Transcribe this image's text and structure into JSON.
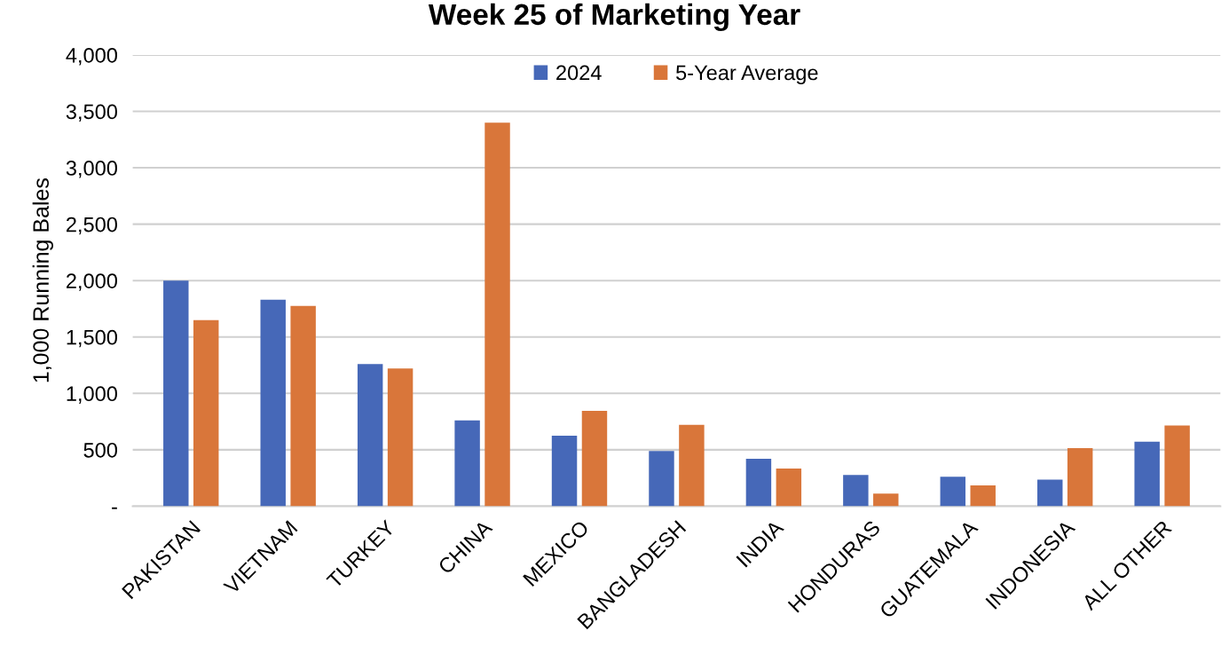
{
  "chart_data": {
    "type": "bar",
    "title": "Week 25 of Marketing Year",
    "ylabel": "1,000 Running Bales",
    "categories": [
      "PAKISTAN",
      "VIETNAM",
      "TURKEY",
      "CHINA",
      "MEXICO",
      "BANGLADESH",
      "INDIA",
      "HONDURAS",
      "GUATEMALA",
      "INDONESIA",
      "ALL OTHER"
    ],
    "series": [
      {
        "name": "2024",
        "color": "#4668b8",
        "values": [
          2000,
          1830,
          1260,
          760,
          625,
          490,
          420,
          276,
          262,
          235,
          572
        ]
      },
      {
        "name": "5-Year Average",
        "color": "#d9763a",
        "values": [
          1650,
          1775,
          1220,
          3400,
          845,
          722,
          334,
          112,
          184,
          514,
          715
        ]
      }
    ],
    "ylim": [
      0,
      4000
    ],
    "yticks": [
      {
        "value": 0,
        "label": "-"
      },
      {
        "value": 500,
        "label": "500"
      },
      {
        "value": 1000,
        "label": "1,000"
      },
      {
        "value": 1500,
        "label": "1,500"
      },
      {
        "value": 2000,
        "label": "2,000"
      },
      {
        "value": 2500,
        "label": "2,500"
      },
      {
        "value": 3000,
        "label": "3,000"
      },
      {
        "value": 3500,
        "label": "3,500"
      },
      {
        "value": 4000,
        "label": "4,000"
      }
    ],
    "grid": "y",
    "legend": "top"
  }
}
